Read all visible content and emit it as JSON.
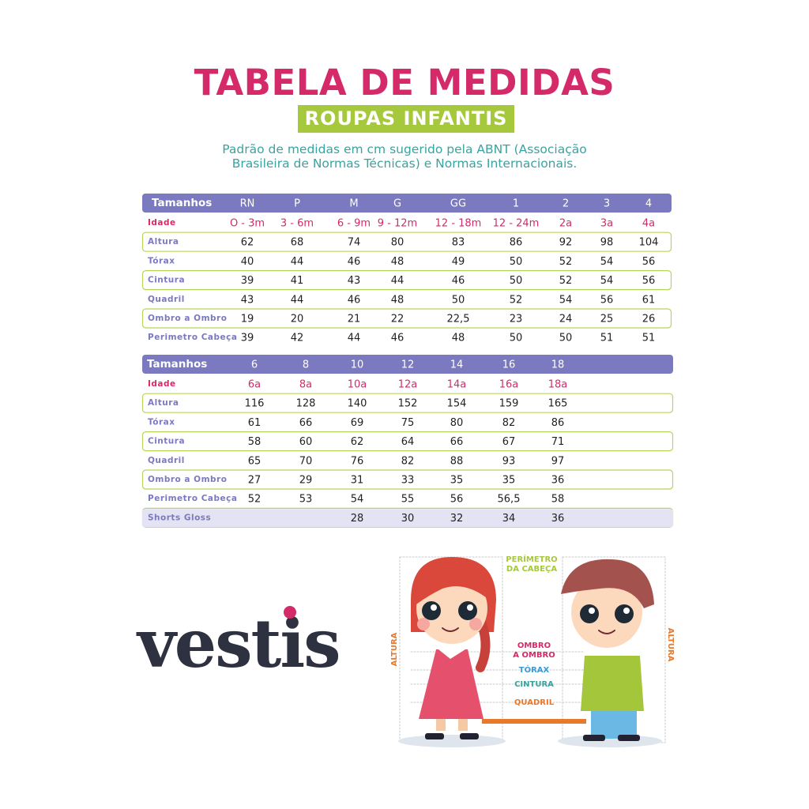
{
  "header": {
    "title": "TABELA DE MEDIDAS",
    "badge": "ROUPAS INFANTIS",
    "description": [
      "Padrão de medidas em cm sugerido pela ABNT (Associação",
      "Brasileira de Normas Técnicas) e Normas Internacionais."
    ]
  },
  "tables": [
    {
      "columns": [
        "Tamanhos",
        "RN",
        "P",
        "M",
        "G",
        "GG",
        "1",
        "2",
        "3",
        "4"
      ],
      "rows": [
        [
          "Idade",
          "O - 3m",
          "3 - 6m",
          "6 - 9m",
          "9 - 12m",
          "12 - 18m",
          "12 - 24m",
          "2a",
          "3a",
          "4a"
        ],
        [
          "Altura",
          "62",
          "68",
          "74",
          "80",
          "83",
          "86",
          "92",
          "98",
          "104"
        ],
        [
          "Tórax",
          "40",
          "44",
          "46",
          "48",
          "49",
          "50",
          "52",
          "54",
          "56"
        ],
        [
          "Cintura",
          "39",
          "41",
          "43",
          "44",
          "46",
          "50",
          "52",
          "54",
          "56"
        ],
        [
          "Quadril",
          "43",
          "44",
          "46",
          "48",
          "50",
          "52",
          "54",
          "56",
          "61"
        ],
        [
          "Ombro a Ombro",
          "19",
          "20",
          "21",
          "22",
          "22,5",
          "23",
          "24",
          "25",
          "26"
        ],
        [
          "Perimetro Cabeça",
          "39",
          "42",
          "44",
          "46",
          "48",
          "50",
          "50",
          "51",
          "51"
        ]
      ]
    },
    {
      "columns": [
        "Tamanhos",
        "6",
        "8",
        "10",
        "12",
        "14",
        "16",
        "18"
      ],
      "rows": [
        [
          "Idade",
          "6a",
          "8a",
          "10a",
          "12a",
          "14a",
          "16a",
          "18a"
        ],
        [
          "Altura",
          "116",
          "128",
          "140",
          "152",
          "154",
          "159",
          "165"
        ],
        [
          "Tórax",
          "61",
          "66",
          "69",
          "75",
          "80",
          "82",
          "86"
        ],
        [
          "Cintura",
          "58",
          "60",
          "62",
          "64",
          "66",
          "67",
          "71"
        ],
        [
          "Quadril",
          "65",
          "70",
          "76",
          "82",
          "88",
          "93",
          "97"
        ],
        [
          "Ombro a Ombro",
          "27",
          "29",
          "31",
          "33",
          "35",
          "35",
          "36"
        ],
        [
          "Perimetro Cabeça",
          "52",
          "53",
          "54",
          "55",
          "56",
          "56,5",
          "58"
        ],
        [
          "Shorts Gloss",
          null,
          null,
          "28",
          "30",
          "32",
          "34",
          "36"
        ]
      ]
    }
  ],
  "logo": "vestis",
  "illustration": {
    "head": [
      "PERÍMETRO",
      "DA CABEÇA"
    ],
    "shoulder": [
      "OMBRO",
      "A OMBRO"
    ],
    "chest": "TÓRAX",
    "waist": "CINTURA",
    "hip": "QUADRIL",
    "height_left": "ALTURA",
    "height_right": "ALTURA"
  }
}
